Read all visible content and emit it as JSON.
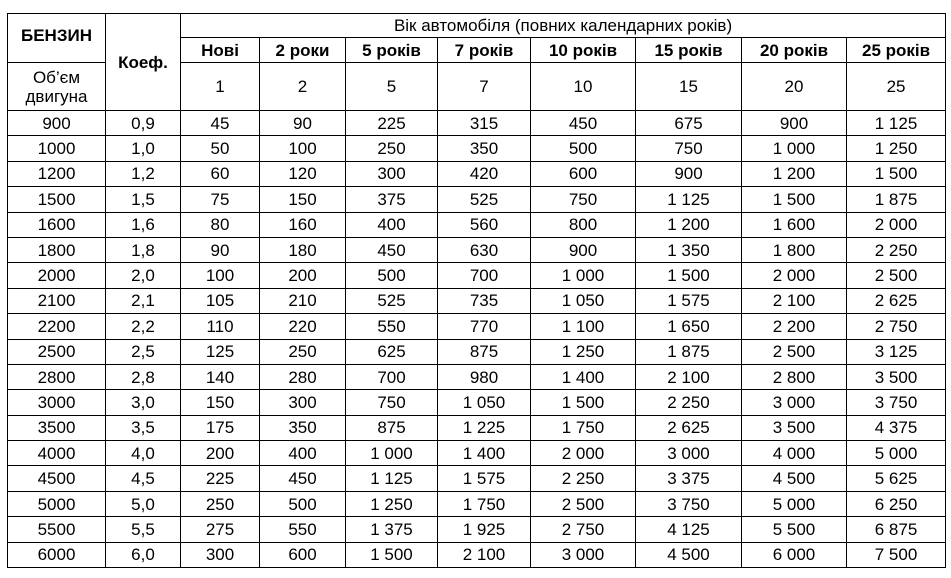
{
  "table": {
    "fuel_label": "БЕНЗИН",
    "coef_label": "Коеф.",
    "volume_label": "Об’єм двигуна",
    "age_group_title": "Вік автомобіля (повних календарних років)",
    "age_headers": [
      "Нові",
      "2 роки",
      "5 років",
      "7 років",
      "10 років",
      "15 років",
      "20 років",
      "25 років"
    ],
    "age_values": [
      "1",
      "2",
      "5",
      "7",
      "10",
      "15",
      "20",
      "25"
    ],
    "rows": [
      [
        "900",
        "0,9",
        "45",
        "90",
        "225",
        "315",
        "450",
        "675",
        "900",
        "1 125"
      ],
      [
        "1000",
        "1,0",
        "50",
        "100",
        "250",
        "350",
        "500",
        "750",
        "1 000",
        "1 250"
      ],
      [
        "1200",
        "1,2",
        "60",
        "120",
        "300",
        "420",
        "600",
        "900",
        "1 200",
        "1 500"
      ],
      [
        "1500",
        "1,5",
        "75",
        "150",
        "375",
        "525",
        "750",
        "1 125",
        "1 500",
        "1 875"
      ],
      [
        "1600",
        "1,6",
        "80",
        "160",
        "400",
        "560",
        "800",
        "1 200",
        "1 600",
        "2 000"
      ],
      [
        "1800",
        "1,8",
        "90",
        "180",
        "450",
        "630",
        "900",
        "1 350",
        "1 800",
        "2 250"
      ],
      [
        "2000",
        "2,0",
        "100",
        "200",
        "500",
        "700",
        "1 000",
        "1 500",
        "2 000",
        "2 500"
      ],
      [
        "2100",
        "2,1",
        "105",
        "210",
        "525",
        "735",
        "1 050",
        "1 575",
        "2 100",
        "2 625"
      ],
      [
        "2200",
        "2,2",
        "110",
        "220",
        "550",
        "770",
        "1 100",
        "1 650",
        "2 200",
        "2 750"
      ],
      [
        "2500",
        "2,5",
        "125",
        "250",
        "625",
        "875",
        "1 250",
        "1 875",
        "2 500",
        "3 125"
      ],
      [
        "2800",
        "2,8",
        "140",
        "280",
        "700",
        "980",
        "1 400",
        "2 100",
        "2 800",
        "3 500"
      ],
      [
        "3000",
        "3,0",
        "150",
        "300",
        "750",
        "1 050",
        "1 500",
        "2 250",
        "3 000",
        "3 750"
      ],
      [
        "3500",
        "3,5",
        "175",
        "350",
        "875",
        "1 225",
        "1 750",
        "2 625",
        "3 500",
        "4 375"
      ],
      [
        "4000",
        "4,0",
        "200",
        "400",
        "1 000",
        "1 400",
        "2 000",
        "3 000",
        "4 000",
        "5 000"
      ],
      [
        "4500",
        "4,5",
        "225",
        "450",
        "1 125",
        "1 575",
        "2 250",
        "3 375",
        "4 500",
        "5 625"
      ],
      [
        "5000",
        "5,0",
        "250",
        "500",
        "1 250",
        "1 750",
        "2 500",
        "3 750",
        "5 000",
        "6 250"
      ],
      [
        "5500",
        "5,5",
        "275",
        "550",
        "1 375",
        "1 925",
        "2 750",
        "4 125",
        "5 500",
        "6 875"
      ],
      [
        "6000",
        "6,0",
        "300",
        "600",
        "1 500",
        "2 100",
        "3 000",
        "4 500",
        "6 000",
        "7 500"
      ]
    ]
  }
}
